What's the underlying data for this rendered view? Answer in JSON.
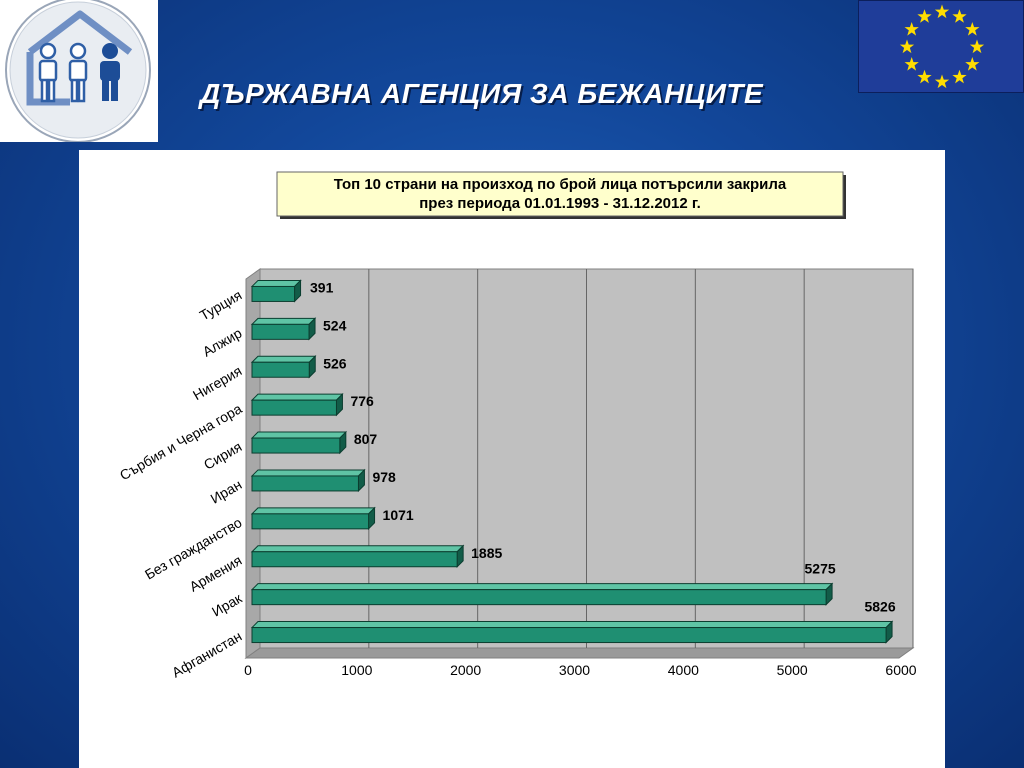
{
  "header": {
    "title": "ДЪРЖАВНА АГЕНЦИЯ ЗА БЕЖАНЦИТЕ"
  },
  "colors": {
    "background": "#12479a",
    "bar_fill": "#1f8f72",
    "bar_edge": "#0b3d2f",
    "plot_area": "#c0c0c0",
    "title_box": "#ffffcc",
    "flag_blue": "#1f3d99",
    "flag_star": "#ffdd00",
    "logo_blue": "#2f5fa6"
  },
  "icons": {
    "logo": "refugee-agency-family-icon",
    "flag": "eu-flag-icon"
  },
  "chart_data": {
    "type": "bar",
    "orientation": "horizontal",
    "title_lines": [
      "Топ 10 страни на произход по брой лица потърсили закрила",
      "през периода 01.01.1993 - 31.12.2012 г."
    ],
    "categories": [
      "Турция",
      "Алжир",
      "Нигерия",
      "Сърбия и Черна гора",
      "Сирия",
      "Иран",
      "Без гражданство",
      "Армения",
      "Ирак",
      "Афганистан"
    ],
    "values": [
      391,
      524,
      526,
      776,
      807,
      978,
      1071,
      1885,
      5275,
      5826
    ],
    "value_labels": [
      "391",
      "524",
      "526",
      "776",
      "807",
      "978",
      "1071",
      "1885",
      "5275",
      "5826"
    ],
    "xlim": [
      0,
      6000
    ],
    "x_ticks": [
      "0",
      "1000",
      "2000",
      "3000",
      "4000",
      "5000",
      "6000"
    ],
    "grid": true,
    "legend": false,
    "style": "3d"
  }
}
